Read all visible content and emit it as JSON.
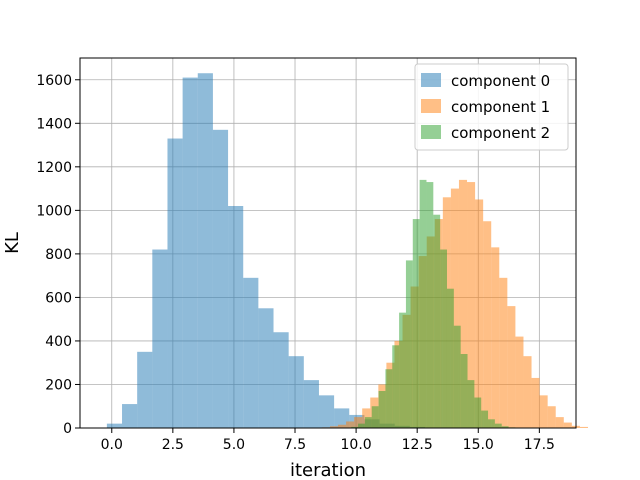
{
  "chart_data": {
    "type": "histogram",
    "xlabel": "iteration",
    "ylabel": "KL",
    "xlim": [
      -1.3,
      19.0
    ],
    "ylim": [
      0,
      1700
    ],
    "xticks": [
      0.0,
      2.5,
      5.0,
      7.5,
      10.0,
      12.5,
      15.0,
      17.5
    ],
    "xtick_labels": [
      "0.0",
      "2.5",
      "5.0",
      "7.5",
      "10.0",
      "12.5",
      "15.0",
      "17.5"
    ],
    "yticks": [
      0,
      200,
      400,
      600,
      800,
      1000,
      1200,
      1400,
      1600
    ],
    "ytick_labels": [
      "0",
      "200",
      "400",
      "600",
      "800",
      "1000",
      "1200",
      "1400",
      "1600"
    ],
    "grid": true,
    "legend_position": "top-right",
    "series": [
      {
        "name": "component 0",
        "color": "#1f77b4",
        "alpha": 0.5,
        "bin_start": -0.2,
        "bin_width": 0.62,
        "counts": [
          20,
          110,
          350,
          820,
          1330,
          1610,
          1630,
          1370,
          1020,
          690,
          550,
          440,
          330,
          220,
          150,
          90,
          60,
          40,
          20,
          10,
          5
        ]
      },
      {
        "name": "component 1",
        "color": "#ff7f0e",
        "alpha": 0.5,
        "bin_start": 8.6,
        "bin_width": 0.33,
        "counts": [
          3,
          8,
          15,
          30,
          50,
          90,
          140,
          200,
          300,
          400,
          520,
          650,
          790,
          880,
          960,
          1060,
          1100,
          1140,
          1130,
          1050,
          950,
          830,
          690,
          560,
          420,
          330,
          230,
          150,
          100,
          50,
          25,
          10,
          5
        ]
      },
      {
        "name": "component 2",
        "color": "#2ca02c",
        "alpha": 0.5,
        "bin_start": 9.8,
        "bin_width": 0.28,
        "counts": [
          5,
          20,
          50,
          100,
          170,
          270,
          380,
          530,
          770,
          960,
          1140,
          1130,
          980,
          820,
          640,
          470,
          340,
          220,
          140,
          80,
          40,
          20,
          8,
          3
        ]
      }
    ]
  }
}
